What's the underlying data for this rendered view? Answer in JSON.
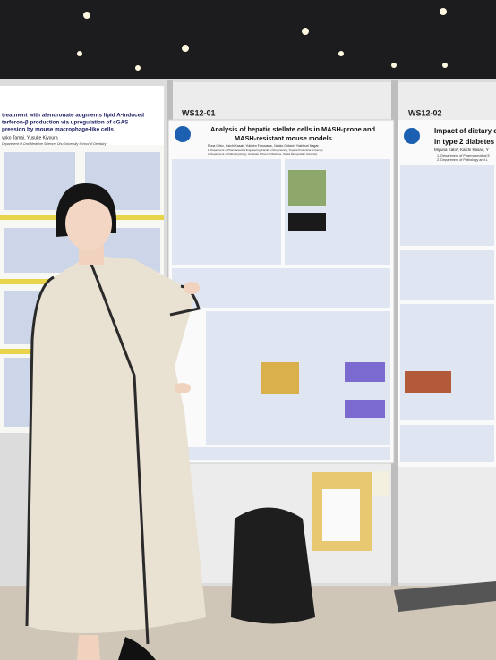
{
  "posters": [
    {
      "title_lines": [
        "treatment with alendronate augments lipid A-induced",
        "terferon-β production via upregulation of cGAS",
        "pression by mouse macrophage-like cells"
      ],
      "authors": "yoko Tamai, Yusuke Kiyoura",
      "affiliations": [
        "Department of Oral Medicine Science, Ohu University School of Dentistry"
      ]
    },
    {
      "label": "WS12-01",
      "title_lines": [
        "Analysis of hepatic stellate cells in MASH-prone and",
        "MASH-resistant mouse models"
      ],
      "authors": "Runa Orito¹, Kaichi Kasai¹, Yukihiro Furusawa¹, Naoko Ohtani², Yoshinori Nagai¹",
      "affiliations": [
        "1. Department of Pharmaceutical Engineering, Faculty of Engineering, Toyama Prefectural University",
        "2. Department of Pathophysiology, Graduate School of Medicine, Osaka Metropolitan University"
      ]
    },
    {
      "label": "WS12-02",
      "title_lines": [
        "Impact of dietary c",
        "in type 2 diabetes"
      ],
      "authors": "Miyuna Kato¹, Kaichi Kasai¹, Y",
      "affiliations": [
        "1. Department of Pharmaceutical E",
        "2. Department of Pathology and L"
      ]
    }
  ]
}
